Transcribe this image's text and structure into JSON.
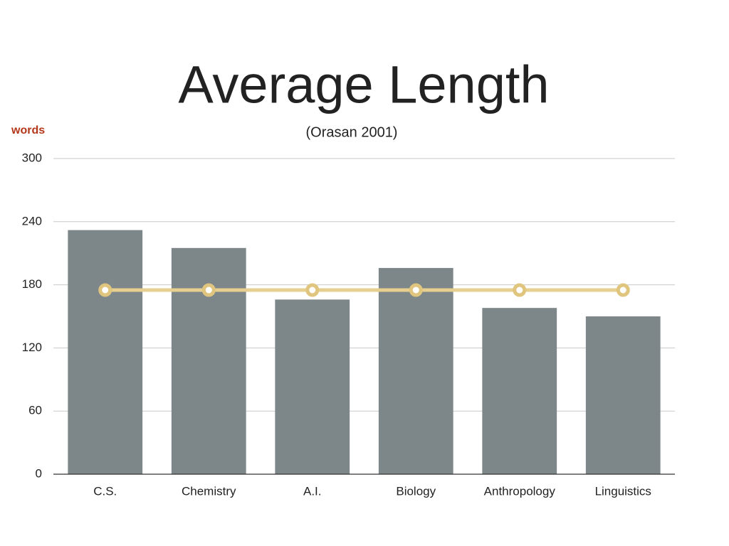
{
  "chart_data": {
    "type": "bar",
    "title": "Average Length",
    "subtitle": "(Orasan 2001)",
    "y_label": "words",
    "categories": [
      "C.S.",
      "Chemistry",
      "A.I.",
      "Biology",
      "Anthropology",
      "Linguistics"
    ],
    "series": [
      {
        "color": "#7d878a",
        "values": [
          232,
          215,
          166,
          196,
          158,
          150
        ]
      },
      {
        "type": "line",
        "color": "#e6cf8f",
        "values": [
          175,
          175,
          175,
          175,
          175,
          175
        ]
      }
    ],
    "ylim": [
      0,
      300
    ],
    "yticks": [
      0,
      60,
      120,
      180,
      240,
      300
    ],
    "grid": true
  }
}
